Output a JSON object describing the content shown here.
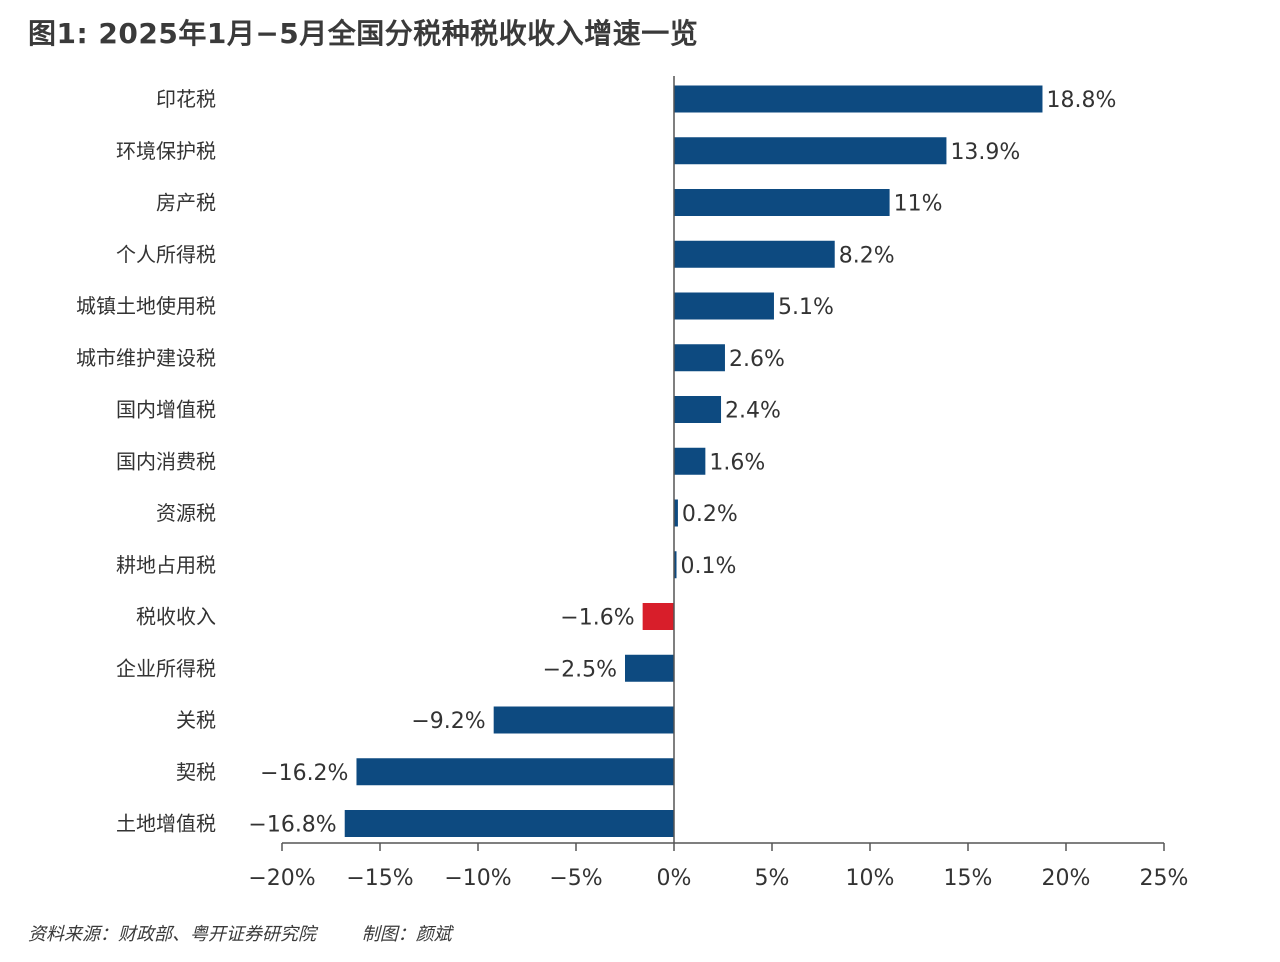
{
  "title": "图1: 2025年1月−5月全国分税种税收收入增速一览",
  "footer": {
    "source": "资料来源：财政部、粤开证券研究院",
    "author": "制图：颜斌"
  },
  "colors": {
    "bar": "#0d4a80",
    "highlight": "#d81e2a",
    "axis": "#555555"
  },
  "chart_data": {
    "type": "bar",
    "orientation": "horizontal",
    "categories": [
      "印花税",
      "环境保护税",
      "房产税",
      "个人所得税",
      "城镇土地使用税",
      "城市维护建设税",
      "国内增值税",
      "国内消费税",
      "资源税",
      "耕地占用税",
      "税收收入",
      "企业所得税",
      "关税",
      "契税",
      "土地增值税"
    ],
    "values": [
      18.8,
      13.9,
      11,
      8.2,
      5.1,
      2.6,
      2.4,
      1.6,
      0.2,
      0.1,
      -1.6,
      -2.5,
      -9.2,
      -16.2,
      -16.8
    ],
    "data_labels": [
      "18.8%",
      "13.9%",
      "11%",
      "8.2%",
      "5.1%",
      "2.6%",
      "2.4%",
      "1.6%",
      "0.2%",
      "0.1%",
      "−1.6%",
      "−2.5%",
      "−9.2%",
      "−16.2%",
      "−16.8%"
    ],
    "highlight_category": "税收收入",
    "xlim": [
      -20,
      25
    ],
    "xticks": [
      -20,
      -15,
      -10,
      -5,
      0,
      5,
      10,
      15,
      20,
      25
    ],
    "xtick_labels": [
      "−20%",
      "−15%",
      "−10%",
      "−5%",
      "0%",
      "5%",
      "10%",
      "15%",
      "20%",
      "25%"
    ],
    "grid": false,
    "legend": "none"
  }
}
